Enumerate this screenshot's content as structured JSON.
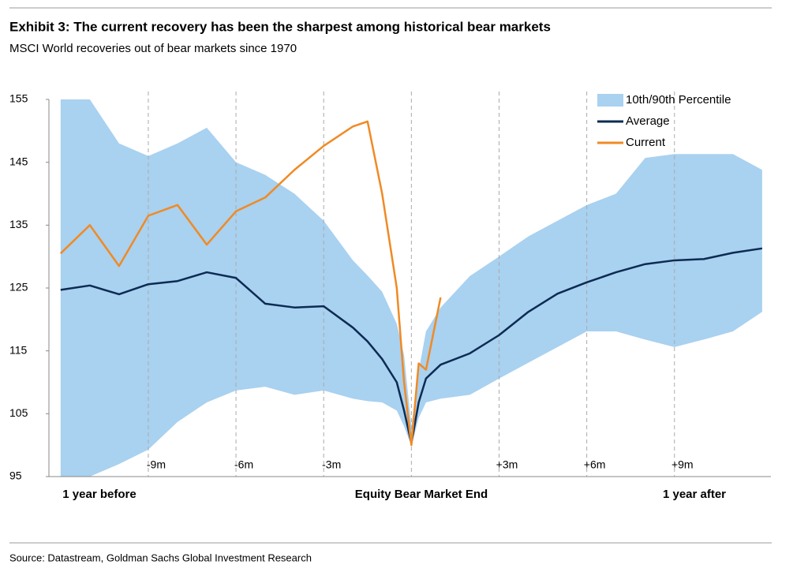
{
  "chart_data": {
    "type": "line",
    "title": "Exhibit 3: The current recovery has been the sharpest among historical bear markets",
    "subtitle": "MSCI World recoveries out of bear markets since 1970",
    "source": "Source: Datastream, Goldman Sachs Global Investment Research",
    "annotations": [
      "1 year before",
      "Equity Bear Market End",
      "1 year after"
    ],
    "x": [
      -12,
      -11,
      -10,
      -9,
      -8,
      -7,
      -6,
      -5,
      -4,
      -3,
      -2,
      -1.5,
      -1,
      -0.5,
      -0.25,
      0,
      0.25,
      0.5,
      1,
      2,
      3,
      4,
      5,
      6,
      7,
      8,
      9,
      10,
      11,
      12
    ],
    "band": {
      "name": "10th/90th Percentile",
      "color": "#a9d1f0",
      "upper": [
        155,
        155,
        148,
        146,
        148,
        150.5,
        145,
        143,
        140,
        135.7,
        129.4,
        127,
        124.4,
        119.3,
        114.3,
        103,
        111.8,
        118.1,
        121.9,
        126.9,
        130,
        133.2,
        135.7,
        138.2,
        140,
        145.7,
        146.3,
        146.3,
        146.3,
        143.8
      ],
      "lower": [
        95,
        95,
        97,
        99.3,
        103.7,
        106.8,
        108.7,
        109.3,
        108,
        108.7,
        107.4,
        107,
        106.8,
        105.5,
        103,
        99.9,
        104.3,
        106.8,
        107.4,
        108,
        110.6,
        113.1,
        115.6,
        118.1,
        118.1,
        116.8,
        115.6,
        116.8,
        118.1,
        121.2
      ]
    },
    "series": [
      {
        "name": "Average",
        "color": "#0d2b52",
        "values": [
          124.7,
          125.4,
          124,
          125.6,
          126.1,
          127.5,
          126.6,
          122.5,
          121.9,
          122.1,
          118.7,
          116.5,
          113.7,
          110,
          105.5,
          100.3,
          106.8,
          110.6,
          112.8,
          114.6,
          117.5,
          121.2,
          124.1,
          125.9,
          127.5,
          128.8,
          129.4,
          129.6,
          130.6,
          131.3
        ]
      },
      {
        "name": "Current",
        "color": "#f08a24",
        "values": [
          130.5,
          135,
          128.5,
          136.5,
          138.2,
          131.9,
          137.2,
          139.4,
          143.8,
          147.6,
          150.7,
          151.5,
          140,
          125,
          110,
          100,
          113,
          112,
          123.5,
          null,
          null,
          null,
          null,
          null,
          null,
          null,
          null,
          null,
          null,
          null
        ]
      }
    ],
    "xlim": [
      -12.4,
      12.3
    ],
    "xticks": [
      {
        "value": -9,
        "label": "-9m"
      },
      {
        "value": -6,
        "label": "-6m"
      },
      {
        "value": -3,
        "label": "-3m"
      },
      {
        "value": 3,
        "label": "+3m"
      },
      {
        "value": 6,
        "label": "+6m"
      },
      {
        "value": 9,
        "label": "+9m"
      }
    ],
    "ylim": [
      95,
      155
    ],
    "yticks": [
      95,
      105,
      115,
      125,
      135,
      145,
      155
    ],
    "x_grid": true,
    "legend": "top-right"
  }
}
